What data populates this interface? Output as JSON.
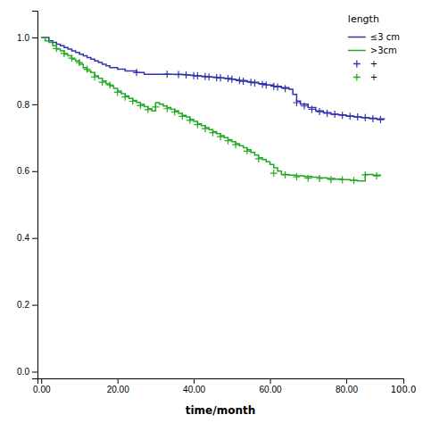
{
  "chart_data": {
    "type": "step",
    "title": "length",
    "xlabel": "time/month",
    "xlim": [
      -1,
      95
    ],
    "ylim": [
      -0.02,
      1.08
    ],
    "xticks": [
      {
        "value": 0.0,
        "label": "0.00"
      },
      {
        "value": 20.0,
        "label": "20.00"
      },
      {
        "value": 40.0,
        "label": "40.00"
      },
      {
        "value": 60.0,
        "label": "60.00"
      },
      {
        "value": 80.0,
        "label": "80.00"
      }
    ],
    "yticks": [
      {
        "value": 0.0,
        "label": "0.0"
      },
      0.2,
      0.4,
      0.6,
      0.8,
      {
        "value": 1.0,
        "label": "1.0"
      }
    ],
    "legend": "upper right",
    "annotations": [
      {
        "x": 95,
        "text": "100.0"
      }
    ],
    "series": [
      {
        "name": "≤3 cm",
        "color": "#3333aa",
        "type": "step",
        "x": [
          0,
          1,
          2,
          3,
          4,
          5,
          6,
          7,
          8,
          9,
          10,
          11,
          12,
          13,
          14,
          15,
          16,
          17,
          18,
          20,
          22,
          25,
          27,
          30,
          32,
          34,
          35,
          36,
          37,
          38,
          39,
          40,
          41,
          42,
          43,
          44,
          45,
          46,
          47,
          48,
          49,
          50,
          51,
          52,
          54,
          55,
          57,
          59,
          61,
          63,
          65,
          66,
          67,
          68,
          70,
          72,
          74,
          76,
          78,
          80,
          82,
          84,
          86,
          88,
          90
        ],
        "values": [
          1.0,
          1.0,
          0.99,
          0.985,
          0.98,
          0.975,
          0.97,
          0.965,
          0.96,
          0.955,
          0.95,
          0.945,
          0.94,
          0.935,
          0.93,
          0.925,
          0.92,
          0.915,
          0.91,
          0.905,
          0.9,
          0.895,
          0.89,
          0.89,
          0.89,
          0.89,
          0.89,
          0.89,
          0.889,
          0.888,
          0.887,
          0.886,
          0.885,
          0.884,
          0.883,
          0.882,
          0.881,
          0.88,
          0.879,
          0.878,
          0.877,
          0.875,
          0.873,
          0.871,
          0.868,
          0.866,
          0.862,
          0.858,
          0.854,
          0.85,
          0.845,
          0.83,
          0.81,
          0.8,
          0.79,
          0.78,
          0.775,
          0.77,
          0.768,
          0.765,
          0.762,
          0.76,
          0.758,
          0.756,
          0.754
        ]
      },
      {
        "name": ">3cm",
        "color": "#22aa22",
        "type": "step",
        "x": [
          0,
          1,
          2,
          3,
          4,
          5,
          6,
          7,
          8,
          9,
          10,
          11,
          12,
          13,
          14,
          15,
          16,
          17,
          18,
          19,
          20,
          21,
          22,
          23,
          24,
          25,
          26,
          27,
          28,
          29,
          30,
          31,
          32,
          33,
          34,
          35,
          36,
          37,
          38,
          39,
          40,
          41,
          42,
          43,
          44,
          45,
          46,
          47,
          48,
          49,
          50,
          51,
          52,
          53,
          54,
          55,
          56,
          57,
          58,
          59,
          60,
          61,
          62,
          63,
          65,
          67,
          69,
          71,
          73,
          75,
          77,
          79,
          81,
          83,
          85,
          87,
          89
        ],
        "values": [
          1.0,
          0.99,
          0.985,
          0.975,
          0.965,
          0.96,
          0.95,
          0.945,
          0.935,
          0.93,
          0.92,
          0.91,
          0.9,
          0.895,
          0.885,
          0.878,
          0.87,
          0.862,
          0.855,
          0.848,
          0.84,
          0.832,
          0.825,
          0.818,
          0.812,
          0.806,
          0.8,
          0.793,
          0.787,
          0.78,
          0.805,
          0.8,
          0.795,
          0.79,
          0.785,
          0.78,
          0.773,
          0.767,
          0.762,
          0.755,
          0.749,
          0.742,
          0.736,
          0.73,
          0.724,
          0.718,
          0.712,
          0.706,
          0.7,
          0.694,
          0.688,
          0.682,
          0.676,
          0.67,
          0.664,
          0.656,
          0.648,
          0.64,
          0.635,
          0.628,
          0.62,
          0.61,
          0.6,
          0.59,
          0.588,
          0.586,
          0.584,
          0.582,
          0.58,
          0.578,
          0.576,
          0.575,
          0.573,
          0.571,
          0.59,
          0.588,
          0.586
        ]
      },
      {
        "name": "+",
        "color": "#3333aa",
        "type": "scatter",
        "marker": "plus",
        "x": [
          25,
          33,
          36,
          38,
          40,
          41,
          43,
          44,
          46,
          47,
          49,
          50,
          52,
          53,
          55,
          56,
          58,
          59,
          61,
          62,
          64,
          67,
          69,
          71,
          73,
          75,
          77,
          79,
          81,
          83,
          85,
          87,
          89
        ],
        "values": [
          0.895,
          0.89,
          0.889,
          0.888,
          0.886,
          0.885,
          0.883,
          0.882,
          0.88,
          0.879,
          0.877,
          0.875,
          0.871,
          0.869,
          0.866,
          0.864,
          0.86,
          0.858,
          0.854,
          0.852,
          0.847,
          0.805,
          0.795,
          0.785,
          0.778,
          0.773,
          0.77,
          0.767,
          0.764,
          0.762,
          0.76,
          0.757,
          0.754
        ]
      },
      {
        "name": "+",
        "color": "#22aa22",
        "type": "scatter",
        "marker": "plus",
        "x": [
          4,
          6,
          8,
          10,
          12,
          14,
          16,
          18,
          20,
          22,
          24,
          26,
          28,
          30,
          33,
          35,
          37,
          39,
          41,
          43,
          45,
          47,
          49,
          51,
          54,
          57,
          61,
          64,
          67,
          70,
          73,
          76,
          79,
          82,
          85,
          88
        ],
        "values": [
          0.967,
          0.952,
          0.938,
          0.925,
          0.905,
          0.882,
          0.866,
          0.858,
          0.836,
          0.822,
          0.809,
          0.796,
          0.784,
          0.792,
          0.787,
          0.777,
          0.764,
          0.752,
          0.739,
          0.727,
          0.715,
          0.703,
          0.691,
          0.679,
          0.66,
          0.637,
          0.594,
          0.589,
          0.583,
          0.579,
          0.578,
          0.575,
          0.574,
          0.572,
          0.589,
          0.586
        ]
      }
    ]
  }
}
